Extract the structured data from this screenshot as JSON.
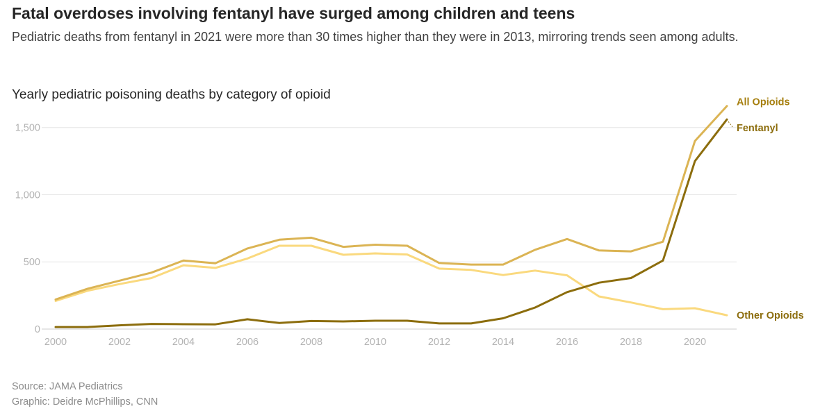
{
  "header": {
    "title": "Fatal overdoses involving fentanyl have surged among children and teens",
    "subtitle": "Pediatric deaths from fentanyl in 2021 were more than 30 times higher than they were in 2013, mirroring trends seen among adults."
  },
  "footer": {
    "source": "Source: JAMA Pediatrics",
    "graphic": "Graphic: Deidre McPhillips, CNN"
  },
  "chart_data": {
    "type": "line",
    "title": "Yearly pediatric poisoning deaths by category of opioid",
    "xlabel": "",
    "ylabel": "",
    "x": [
      2000,
      2001,
      2002,
      2003,
      2004,
      2005,
      2006,
      2007,
      2008,
      2009,
      2010,
      2011,
      2012,
      2013,
      2014,
      2015,
      2016,
      2017,
      2018,
      2019,
      2020,
      2021
    ],
    "xlim": [
      2000,
      2021
    ],
    "ylim": [
      0,
      1700
    ],
    "xticks": [
      "2000",
      "2002",
      "2004",
      "2006",
      "2008",
      "2010",
      "2012",
      "2014",
      "2016",
      "2018",
      "2020"
    ],
    "yticks": [
      "0",
      "500",
      "1,000",
      "1,500"
    ],
    "ytick_values": [
      0,
      500,
      1000,
      1500
    ],
    "series": [
      {
        "name": "All Opioids",
        "color": "#dbb454",
        "values": [
          220,
          300,
          360,
          420,
          510,
          490,
          600,
          665,
          680,
          612,
          628,
          620,
          492,
          480,
          480,
          590,
          670,
          585,
          578,
          650,
          1400,
          1660
        ]
      },
      {
        "name": "Other Opioids",
        "color": "#fad97e",
        "values": [
          210,
          285,
          335,
          380,
          475,
          455,
          525,
          620,
          620,
          553,
          563,
          555,
          450,
          440,
          402,
          435,
          400,
          243,
          198,
          148,
          155,
          103
        ]
      },
      {
        "name": "Fentanyl",
        "color": "#8c6d0d",
        "values": [
          15,
          15,
          28,
          38,
          36,
          35,
          73,
          45,
          60,
          57,
          62,
          62,
          42,
          42,
          80,
          160,
          275,
          345,
          380,
          510,
          1250,
          1560
        ]
      }
    ]
  }
}
